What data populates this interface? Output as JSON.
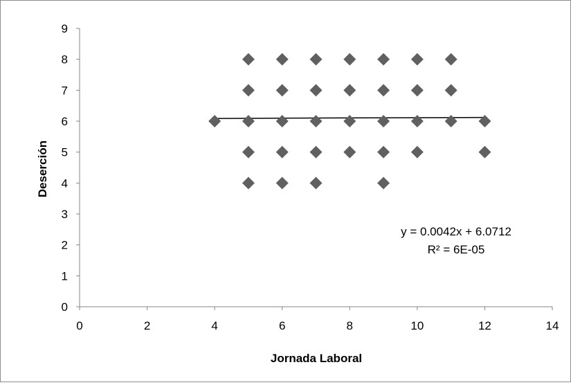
{
  "chart_data": {
    "type": "scatter",
    "title": "",
    "xlabel": "Jornada Laboral",
    "ylabel": "Deserción",
    "xlim": [
      0,
      14
    ],
    "ylim": [
      0,
      9
    ],
    "x_ticks": [
      "0",
      "2",
      "4",
      "6",
      "8",
      "10",
      "12",
      "14"
    ],
    "y_ticks": [
      "0",
      "1",
      "2",
      "3",
      "4",
      "5",
      "6",
      "7",
      "8",
      "9"
    ],
    "grid": false,
    "legend": "none",
    "marker": "diamond",
    "marker_color": "#606060",
    "points": [
      {
        "x": 4,
        "y": 6
      },
      {
        "x": 5,
        "y": 8
      },
      {
        "x": 5,
        "y": 7
      },
      {
        "x": 5,
        "y": 6
      },
      {
        "x": 5,
        "y": 5
      },
      {
        "x": 5,
        "y": 4
      },
      {
        "x": 6,
        "y": 8
      },
      {
        "x": 6,
        "y": 7
      },
      {
        "x": 6,
        "y": 6
      },
      {
        "x": 6,
        "y": 5
      },
      {
        "x": 6,
        "y": 4
      },
      {
        "x": 7,
        "y": 8
      },
      {
        "x": 7,
        "y": 7
      },
      {
        "x": 7,
        "y": 6
      },
      {
        "x": 7,
        "y": 5
      },
      {
        "x": 7,
        "y": 4
      },
      {
        "x": 8,
        "y": 8
      },
      {
        "x": 8,
        "y": 7
      },
      {
        "x": 8,
        "y": 6
      },
      {
        "x": 8,
        "y": 5
      },
      {
        "x": 9,
        "y": 8
      },
      {
        "x": 9,
        "y": 7
      },
      {
        "x": 9,
        "y": 6
      },
      {
        "x": 9,
        "y": 5
      },
      {
        "x": 9,
        "y": 4
      },
      {
        "x": 10,
        "y": 8
      },
      {
        "x": 10,
        "y": 7
      },
      {
        "x": 10,
        "y": 6
      },
      {
        "x": 10,
        "y": 5
      },
      {
        "x": 11,
        "y": 8
      },
      {
        "x": 11,
        "y": 7
      },
      {
        "x": 11,
        "y": 6
      },
      {
        "x": 12,
        "y": 6
      },
      {
        "x": 12,
        "y": 5
      }
    ],
    "trendline": {
      "type": "linear",
      "slope": 0.0042,
      "intercept": 6.0712,
      "x_range": [
        4,
        12
      ],
      "color": "#000000",
      "equation_label": "y = 0.0042x + 6.0712",
      "r2_label": "R² = 6E-05"
    }
  }
}
